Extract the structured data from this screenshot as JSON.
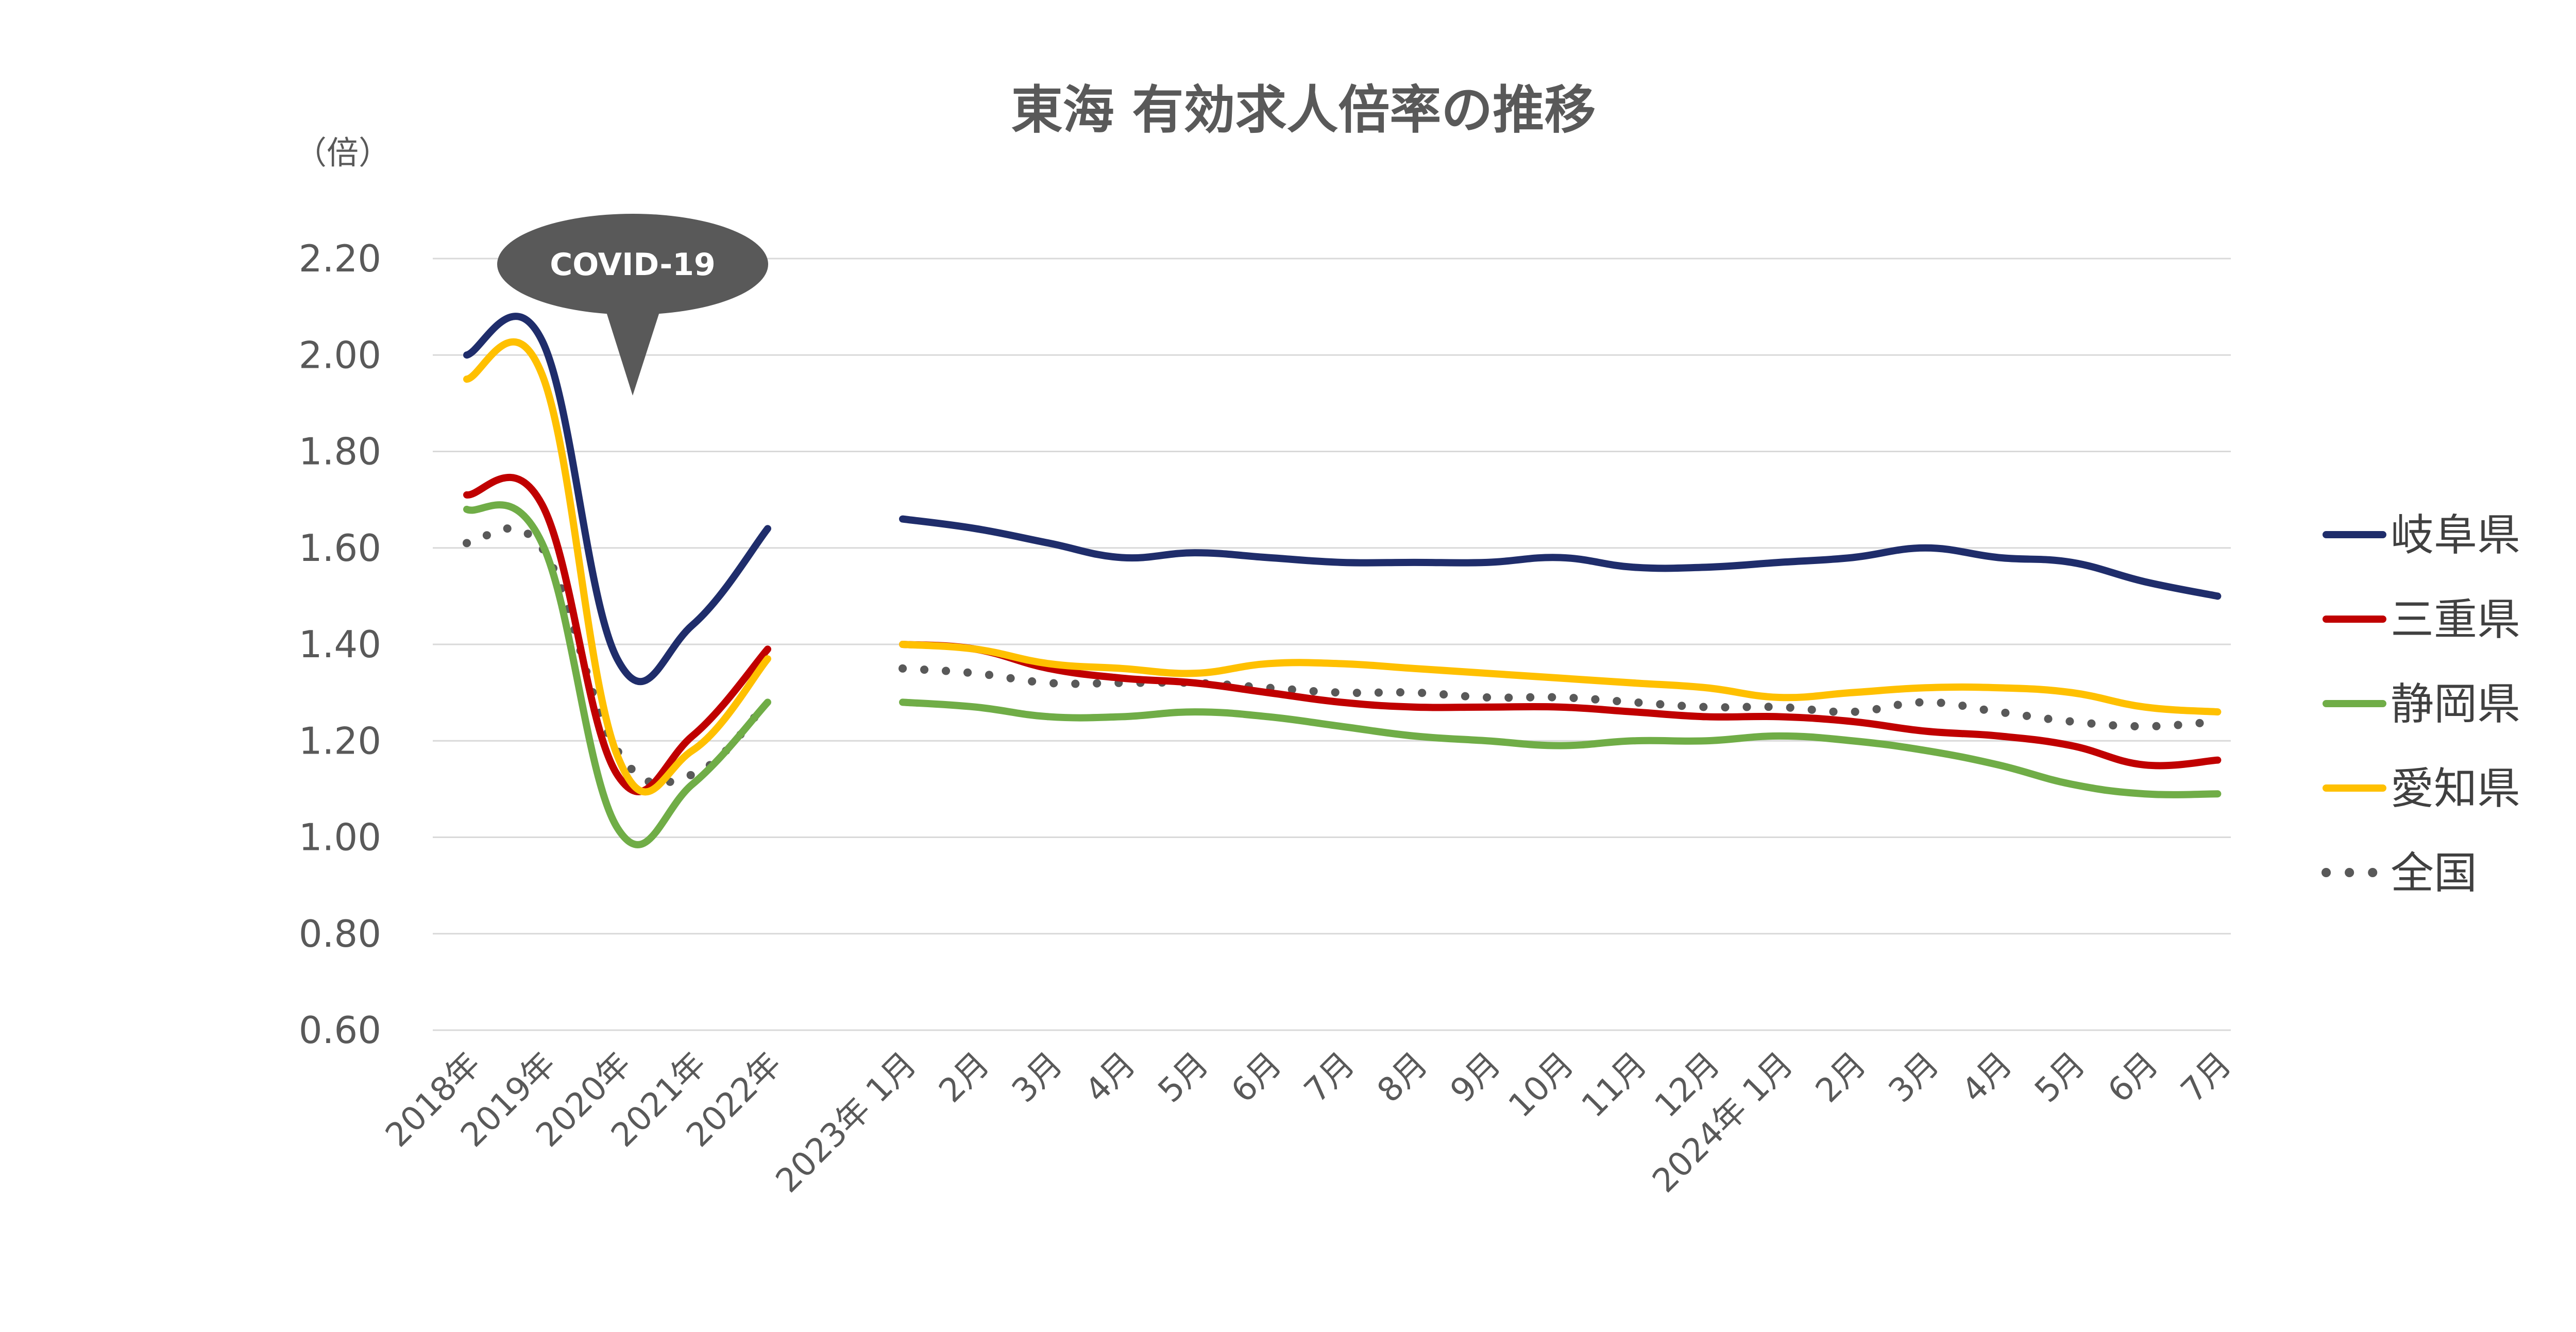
{
  "chart_data": {
    "type": "line",
    "title": "東海 有効求人倍率の推移",
    "ylabel": "（倍）",
    "xlabel": "",
    "ylim": [
      0.6,
      2.2
    ],
    "yticks": [
      "2.20",
      "2.00",
      "1.80",
      "1.60",
      "1.40",
      "1.20",
      "1.00",
      "0.80",
      "0.60"
    ],
    "grid": true,
    "legend_position": "right",
    "annotation": "COVID-19",
    "annual": {
      "categories": [
        "2018年",
        "2019年",
        "2020年",
        "2021年",
        "2022年"
      ],
      "series": [
        {
          "name": "岐阜県",
          "values": [
            2.0,
            2.03,
            1.37,
            1.44,
            1.64
          ]
        },
        {
          "name": "三重県",
          "values": [
            1.71,
            1.69,
            1.13,
            1.21,
            1.39
          ]
        },
        {
          "name": "静岡県",
          "values": [
            1.68,
            1.61,
            1.02,
            1.11,
            1.28
          ]
        },
        {
          "name": "愛知県",
          "values": [
            1.95,
            1.96,
            1.17,
            1.18,
            1.37
          ]
        },
        {
          "name": "全国",
          "values": [
            1.61,
            1.6,
            1.18,
            1.13,
            1.28
          ]
        }
      ]
    },
    "monthly": {
      "categories": [
        "2023年 1月",
        "2月",
        "3月",
        "4月",
        "5月",
        "6月",
        "7月",
        "8月",
        "9月",
        "10月",
        "11月",
        "12月",
        "2024年 1月",
        "2月",
        "3月",
        "4月",
        "5月",
        "6月",
        "7月"
      ],
      "series": [
        {
          "name": "岐阜県",
          "values": [
            1.66,
            1.64,
            1.61,
            1.58,
            1.59,
            1.58,
            1.57,
            1.57,
            1.57,
            1.58,
            1.56,
            1.56,
            1.57,
            1.58,
            1.6,
            1.58,
            1.57,
            1.53,
            1.5
          ]
        },
        {
          "name": "三重県",
          "values": [
            1.4,
            1.39,
            1.35,
            1.33,
            1.32,
            1.3,
            1.28,
            1.27,
            1.27,
            1.27,
            1.26,
            1.25,
            1.25,
            1.24,
            1.22,
            1.21,
            1.19,
            1.15,
            1.16
          ]
        },
        {
          "name": "静岡県",
          "values": [
            1.28,
            1.27,
            1.25,
            1.25,
            1.26,
            1.25,
            1.23,
            1.21,
            1.2,
            1.19,
            1.2,
            1.2,
            1.21,
            1.2,
            1.18,
            1.15,
            1.11,
            1.09,
            1.09
          ]
        },
        {
          "name": "愛知県",
          "values": [
            1.4,
            1.39,
            1.36,
            1.35,
            1.34,
            1.36,
            1.36,
            1.35,
            1.34,
            1.33,
            1.32,
            1.31,
            1.29,
            1.3,
            1.31,
            1.31,
            1.3,
            1.27,
            1.26
          ]
        },
        {
          "name": "全国",
          "values": [
            1.35,
            1.34,
            1.32,
            1.32,
            1.32,
            1.31,
            1.3,
            1.3,
            1.29,
            1.29,
            1.28,
            1.27,
            1.27,
            1.26,
            1.28,
            1.26,
            1.24,
            1.23,
            1.24
          ]
        }
      ]
    },
    "colors": {
      "岐阜県": "#1f2d6b",
      "三重県": "#c00000",
      "静岡県": "#70ad47",
      "愛知県": "#ffc000",
      "全国": "#595959",
      "callout": "#595959"
    },
    "dotted_series": [
      "全国"
    ]
  }
}
